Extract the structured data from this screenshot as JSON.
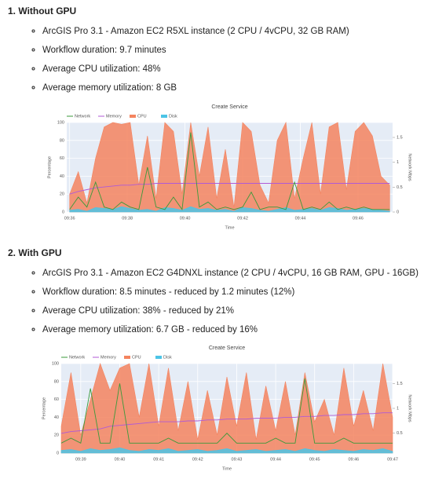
{
  "sections": [
    {
      "heading": "1. Without GPU",
      "bullets": [
        "ArcGIS Pro 3.1 - Amazon EC2 R5XL instance (2 CPU / 4vCPU, 32 GB RAM)",
        "Workflow duration: 9.7 minutes",
        "Average CPU utilization: 48%",
        "Average memory utilization: 8 GB"
      ]
    },
    {
      "heading": "2. With GPU",
      "bullets": [
        "ArcGIS Pro 3.1 - Amazon EC2 G4DNXL instance (2 CPU / 4vCPU, 16 GB RAM, GPU - 16GB)",
        "Workflow duration: 8.5 minutes - reduced by 1.2 minutes (12%)",
        "Average CPU utilization: 38% - reduced by 21%",
        "Average memory utilization: 6.7 GB - reduced by 16%"
      ]
    }
  ],
  "chart_data": [
    {
      "type": "area",
      "title": "Create Service",
      "xlabel": "Time",
      "ylabel": "Percentage",
      "y2label": "Network Mbps",
      "legend": "top-left",
      "grid": true,
      "x": [
        36.0,
        36.3,
        36.6,
        36.9,
        37.2,
        37.5,
        37.8,
        38.1,
        38.4,
        38.7,
        39.0,
        39.3,
        39.6,
        39.9,
        40.2,
        40.5,
        40.8,
        41.1,
        41.4,
        41.7,
        42.0,
        42.3,
        42.6,
        42.9,
        43.2,
        43.5,
        43.8,
        44.1,
        44.4,
        44.7,
        45.0,
        45.3,
        45.6,
        45.9,
        46.2,
        46.5,
        46.8,
        47.1
      ],
      "xlim": [
        35.9,
        47.2
      ],
      "xticks": [
        {
          "value": 36,
          "label": "09:36"
        },
        {
          "value": 38,
          "label": "09:38"
        },
        {
          "value": 40,
          "label": "09:40"
        },
        {
          "value": 42,
          "label": "09:42"
        },
        {
          "value": 44,
          "label": "09:44"
        },
        {
          "value": 46,
          "label": "09:46"
        }
      ],
      "ylim": [
        0,
        100
      ],
      "yticks": [
        0,
        20,
        40,
        60,
        80,
        100
      ],
      "y2lim": [
        0,
        1.8
      ],
      "y2ticks": [
        0,
        0.5,
        1,
        1.5
      ],
      "series": [
        {
          "name": "Network",
          "color": "#3a9a3a",
          "axis": "y2",
          "area": false,
          "values": [
            0.05,
            0.3,
            0.1,
            0.6,
            0.1,
            0.05,
            0.2,
            0.1,
            0.05,
            0.9,
            0.1,
            0.05,
            0.3,
            0.05,
            1.6,
            0.1,
            0.2,
            0.05,
            0.1,
            0.05,
            0.1,
            0.4,
            0.05,
            0.1,
            0.1,
            0.05,
            0.6,
            0.05,
            0.1,
            0.05,
            0.2,
            0.05,
            0.1,
            0.05,
            0.1,
            0.05,
            0.05,
            0.05
          ]
        },
        {
          "name": "Memory",
          "color": "#b05ad6",
          "area": false,
          "values": [
            20,
            23,
            25,
            27,
            28,
            29,
            30,
            30,
            31,
            31,
            32,
            32,
            32,
            32,
            32,
            32,
            32,
            32,
            32,
            32,
            32,
            32,
            32,
            32,
            32,
            32,
            32,
            32,
            32,
            32,
            32,
            32,
            32,
            32,
            32,
            32,
            32,
            32
          ]
        },
        {
          "name": "CPU",
          "color": "#f4845f",
          "area": true,
          "values": [
            20,
            45,
            10,
            60,
            95,
            100,
            98,
            100,
            30,
            85,
            15,
            100,
            90,
            20,
            100,
            40,
            95,
            15,
            70,
            5,
            100,
            90,
            30,
            10,
            80,
            100,
            15,
            60,
            100,
            20,
            95,
            100,
            25,
            90,
            100,
            85,
            40,
            30
          ]
        },
        {
          "name": "Disk",
          "color": "#4cc4e6",
          "area": true,
          "values": [
            2,
            3,
            1,
            5,
            4,
            3,
            6,
            4,
            2,
            3,
            1,
            5,
            4,
            2,
            6,
            3,
            4,
            2,
            3,
            1,
            5,
            4,
            2,
            1,
            3,
            5,
            2,
            3,
            4,
            2,
            5,
            4,
            2,
            3,
            4,
            3,
            2,
            1
          ]
        }
      ]
    },
    {
      "type": "area",
      "title": "Create Service",
      "xlabel": "Time",
      "ylabel": "Percentage",
      "y2label": "Network Mbps",
      "legend": "top-left",
      "grid": true,
      "x": [
        38.5,
        38.75,
        39,
        39.25,
        39.5,
        39.75,
        40,
        40.25,
        40.5,
        40.75,
        41,
        41.25,
        41.5,
        41.75,
        42,
        42.25,
        42.5,
        42.75,
        43,
        43.25,
        43.5,
        43.75,
        44,
        44.25,
        44.5,
        44.75,
        45,
        45.25,
        45.5,
        45.75,
        46,
        46.25,
        46.5,
        46.75,
        47
      ],
      "xlim": [
        38.5,
        47.0
      ],
      "xticks": [
        {
          "value": 39,
          "label": "09:39"
        },
        {
          "value": 40,
          "label": "09:40"
        },
        {
          "value": 41,
          "label": "09:41"
        },
        {
          "value": 42,
          "label": "09:42"
        },
        {
          "value": 43,
          "label": "09:43"
        },
        {
          "value": 44,
          "label": "09:44"
        },
        {
          "value": 45,
          "label": "09:45"
        },
        {
          "value": 46,
          "label": "09:46"
        },
        {
          "value": 47,
          "label": "09:47"
        }
      ],
      "ylim": [
        0,
        100
      ],
      "yticks": [
        0,
        20,
        40,
        60,
        80,
        100
      ],
      "y2lim": [
        0.1,
        1.9
      ],
      "y2ticks": [
        0.5,
        1,
        1.5
      ],
      "series": [
        {
          "name": "Network",
          "color": "#3a9a3a",
          "axis": "y2",
          "area": false,
          "values": [
            0.3,
            0.4,
            0.3,
            1.4,
            0.3,
            0.3,
            1.5,
            0.3,
            0.3,
            0.3,
            0.3,
            0.4,
            0.3,
            0.3,
            0.3,
            0.3,
            0.3,
            0.5,
            0.3,
            0.3,
            0.3,
            0.3,
            0.4,
            0.3,
            0.3,
            1.6,
            0.3,
            0.3,
            0.3,
            0.4,
            0.3,
            0.3,
            0.3,
            0.3,
            0.3
          ]
        },
        {
          "name": "Memory",
          "color": "#b05ad6",
          "area": false,
          "values": [
            22,
            24,
            25,
            26,
            27,
            30,
            31,
            32,
            33,
            34,
            35,
            35,
            35,
            36,
            36,
            37,
            37,
            38,
            38,
            38,
            39,
            39,
            39,
            40,
            40,
            41,
            41,
            42,
            42,
            43,
            43,
            44,
            44,
            45,
            45
          ]
        },
        {
          "name": "CPU",
          "color": "#f4845f",
          "area": true,
          "values": [
            30,
            90,
            20,
            60,
            100,
            70,
            95,
            100,
            40,
            100,
            30,
            95,
            25,
            80,
            15,
            70,
            20,
            85,
            30,
            90,
            15,
            75,
            25,
            80,
            20,
            90,
            35,
            60,
            20,
            95,
            30,
            70,
            25,
            100,
            40
          ]
        },
        {
          "name": "Disk",
          "color": "#4cc4e6",
          "area": true,
          "values": [
            3,
            4,
            2,
            5,
            3,
            4,
            6,
            3,
            2,
            4,
            3,
            5,
            2,
            3,
            4,
            2,
            3,
            5,
            2,
            3,
            4,
            2,
            3,
            4,
            2,
            5,
            3,
            2,
            4,
            3,
            2,
            4,
            3,
            5,
            2
          ]
        }
      ]
    }
  ]
}
